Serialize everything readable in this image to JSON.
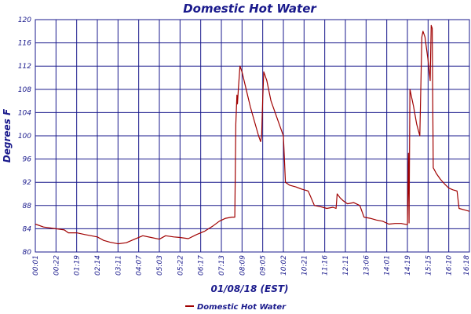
{
  "chart_data": {
    "type": "line",
    "title": "Domestic Hot Water",
    "xlabel": "01/08/18 (EST)",
    "ylabel": "Degrees F",
    "ylim": [
      80,
      120
    ],
    "y_ticks": [
      80,
      84,
      88,
      92,
      96,
      100,
      104,
      108,
      112,
      116,
      120
    ],
    "x_tick_labels": [
      "00:01",
      "00:22",
      "01:19",
      "02:14",
      "03:11",
      "04:07",
      "05:03",
      "05:22",
      "06:17",
      "07:13",
      "08:09",
      "09:05",
      "10:02",
      "10:21",
      "11:16",
      "12:11",
      "13:06",
      "14:01",
      "14:19",
      "15:15",
      "16:10",
      "16:18"
    ],
    "grid": true,
    "legend_position": "bottom-center",
    "colors": {
      "series": "#a00000",
      "grid": "#1a1a8c",
      "text": "#1a1a8c"
    },
    "series": [
      {
        "name": "Domestic Hot Water",
        "points": [
          [
            0,
            84.8
          ],
          [
            0.4,
            84.3
          ],
          [
            1.0,
            84.0
          ],
          [
            1.4,
            83.8
          ],
          [
            1.6,
            83.3
          ],
          [
            2.0,
            83.3
          ],
          [
            2.4,
            83.0
          ],
          [
            3.0,
            82.6
          ],
          [
            3.3,
            82.0
          ],
          [
            3.6,
            81.7
          ],
          [
            4.0,
            81.4
          ],
          [
            4.4,
            81.6
          ],
          [
            4.8,
            82.2
          ],
          [
            5.2,
            82.8
          ],
          [
            5.6,
            82.5
          ],
          [
            6.0,
            82.2
          ],
          [
            6.3,
            82.8
          ],
          [
            6.7,
            82.6
          ],
          [
            7.0,
            82.5
          ],
          [
            7.4,
            82.3
          ],
          [
            7.8,
            83.0
          ],
          [
            8.2,
            83.6
          ],
          [
            8.6,
            84.5
          ],
          [
            8.9,
            85.3
          ],
          [
            9.2,
            85.8
          ],
          [
            9.5,
            86.0
          ],
          [
            9.65,
            86.0
          ],
          [
            9.7,
            102.0
          ],
          [
            9.75,
            107.0
          ],
          [
            9.78,
            105.5
          ],
          [
            9.82,
            108.0
          ],
          [
            9.9,
            112.0
          ],
          [
            10.0,
            111.0
          ],
          [
            10.2,
            108.0
          ],
          [
            10.4,
            105.0
          ],
          [
            10.6,
            102.5
          ],
          [
            10.8,
            100.0
          ],
          [
            10.9,
            99.0
          ],
          [
            10.95,
            100.0
          ],
          [
            11.0,
            106.5
          ],
          [
            11.05,
            111.0
          ],
          [
            11.2,
            109.5
          ],
          [
            11.4,
            106.0
          ],
          [
            11.6,
            104.0
          ],
          [
            11.8,
            102.0
          ],
          [
            12.0,
            100.0
          ],
          [
            12.1,
            92.0
          ],
          [
            12.3,
            91.5
          ],
          [
            12.6,
            91.2
          ],
          [
            12.9,
            90.8
          ],
          [
            13.2,
            90.5
          ],
          [
            13.5,
            88.0
          ],
          [
            13.8,
            87.8
          ],
          [
            14.1,
            87.5
          ],
          [
            14.4,
            87.7
          ],
          [
            14.55,
            87.5
          ],
          [
            14.6,
            90.0
          ],
          [
            14.75,
            89.3
          ],
          [
            14.9,
            88.8
          ],
          [
            15.1,
            88.3
          ],
          [
            15.4,
            88.5
          ],
          [
            15.7,
            88.0
          ],
          [
            15.9,
            86.0
          ],
          [
            16.2,
            85.8
          ],
          [
            16.5,
            85.5
          ],
          [
            16.8,
            85.3
          ],
          [
            17.1,
            84.8
          ],
          [
            17.4,
            84.9
          ],
          [
            17.7,
            84.9
          ],
          [
            18.0,
            84.7
          ],
          [
            18.05,
            97.0
          ],
          [
            18.08,
            85.0
          ],
          [
            18.12,
            108.0
          ],
          [
            18.3,
            105.0
          ],
          [
            18.45,
            102.0
          ],
          [
            18.6,
            100.0
          ],
          [
            18.7,
            117.0
          ],
          [
            18.75,
            118.0
          ],
          [
            18.85,
            117.0
          ],
          [
            19.0,
            113.0
          ],
          [
            19.1,
            109.5
          ],
          [
            19.15,
            119.0
          ],
          [
            19.2,
            118.5
          ],
          [
            19.25,
            94.5
          ],
          [
            19.4,
            93.5
          ],
          [
            19.6,
            92.5
          ],
          [
            19.8,
            91.7
          ],
          [
            20.0,
            91.0
          ],
          [
            20.2,
            90.7
          ],
          [
            20.4,
            90.5
          ],
          [
            20.5,
            87.5
          ],
          [
            20.8,
            87.2
          ],
          [
            21.0,
            87.0
          ]
        ]
      }
    ]
  }
}
